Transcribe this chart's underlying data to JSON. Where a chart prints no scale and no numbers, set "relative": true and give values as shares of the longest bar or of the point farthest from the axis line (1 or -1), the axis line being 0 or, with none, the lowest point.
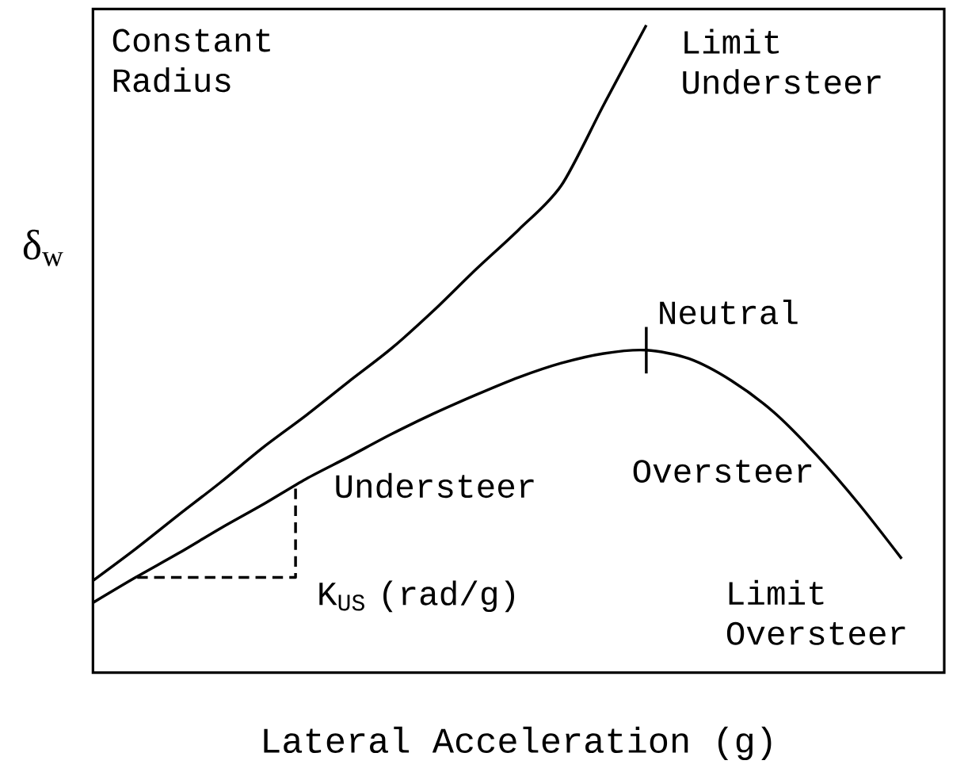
{
  "chart_data": {
    "type": "line",
    "relative": true,
    "xlabel": "Lateral Acceleration (g)",
    "ylabel": "δ$_{w}$",
    "categories": [
      null,
      null,
      null,
      null,
      null,
      null,
      null,
      null,
      null,
      null,
      null,
      null,
      null,
      null,
      null,
      null,
      null,
      null,
      null,
      null
    ],
    "series": [
      {
        "color": "#000000",
        "values": [
          0.142,
          0.191,
          0.243,
          0.294,
          0.348,
          0.397,
          0.449,
          0.5,
          0.559,
          0.623,
          0.684,
          0.752,
          0.877,
          1,
          null,
          null,
          null,
          null,
          null,
          null
        ]
      },
      {
        "color": "#000000",
        "values": [
          0.108,
          0.147,
          0.184,
          0.223,
          0.26,
          0.299,
          0.333,
          0.368,
          0.4,
          0.429,
          0.456,
          0.478,
          0.493,
          0.498,
          0.485,
          0.451,
          0.402,
          0.336,
          0.26,
          0.176
        ]
      }
    ],
    "annotations": [
      "Constant Radius",
      "Limit Understeer",
      "Neutral",
      "Understeer",
      "Oversteer",
      "K$_{US}$ (rad/g)",
      "Limit Oversteer"
    ]
  }
}
